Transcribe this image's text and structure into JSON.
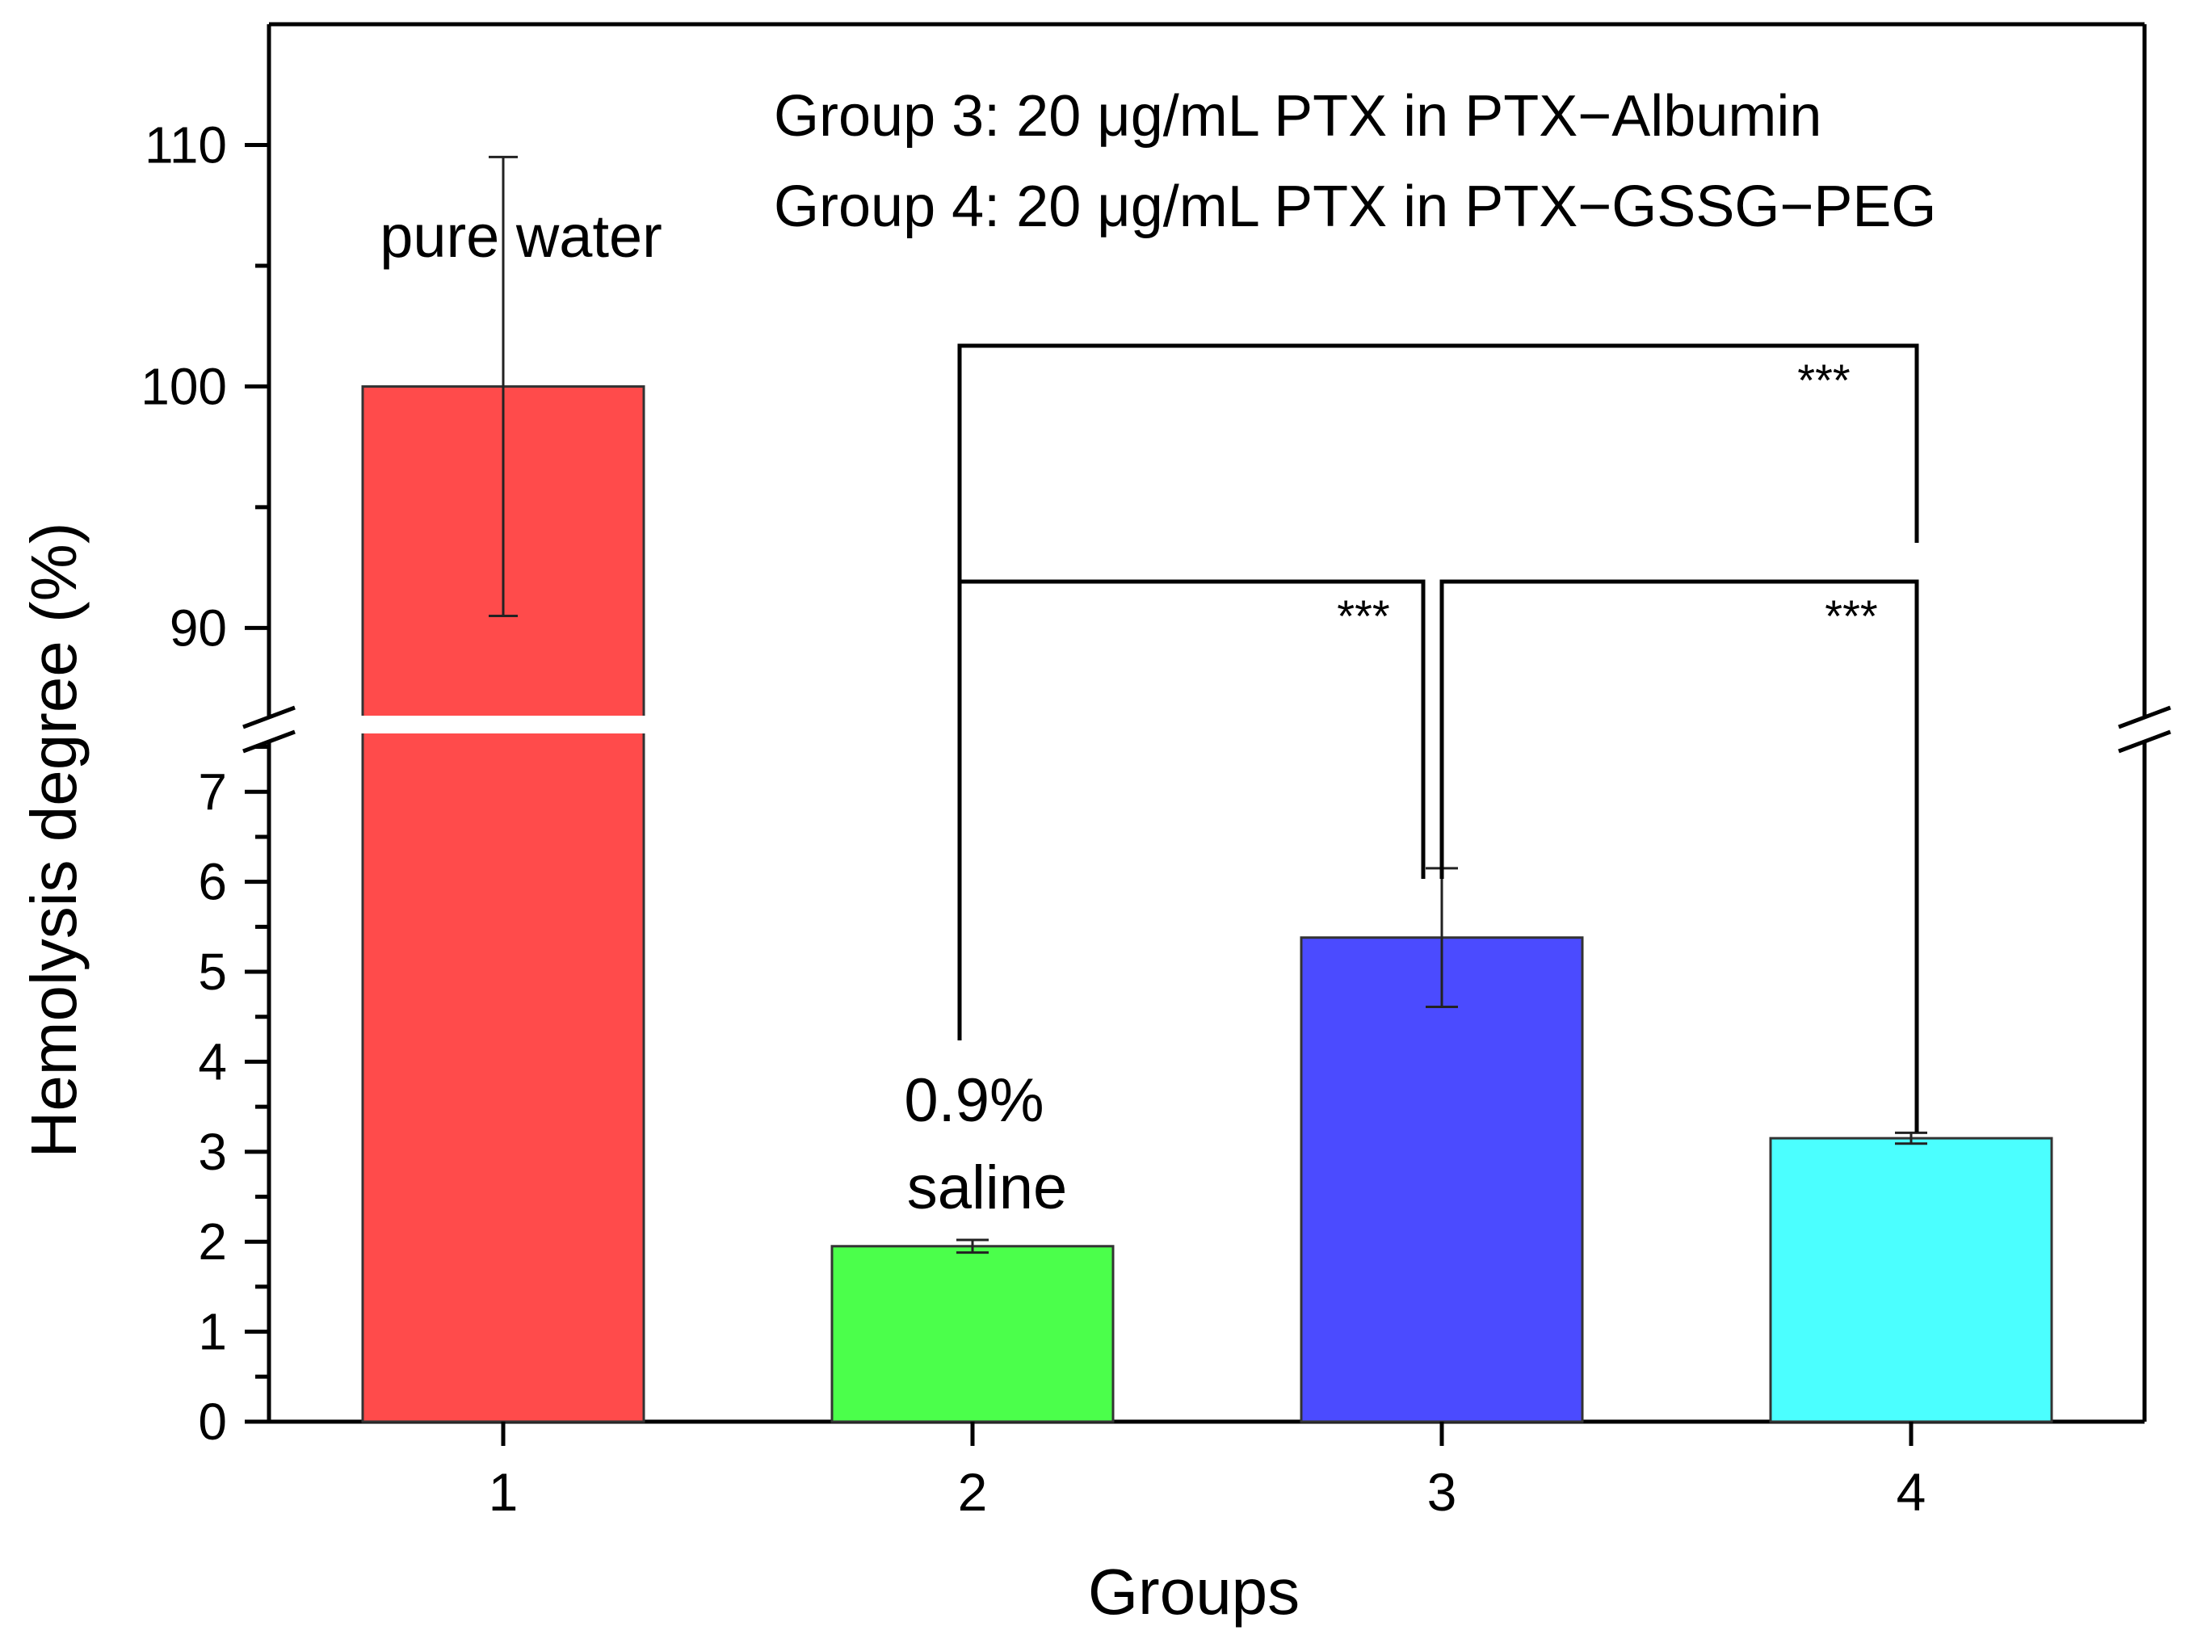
{
  "chart_data": {
    "type": "bar",
    "xlabel": "Groups",
    "ylabel": "Hemolysis degree (%)",
    "categories": [
      "1",
      "2",
      "3",
      "4"
    ],
    "values": [
      100,
      1.95,
      5.38,
      3.15
    ],
    "errors": [
      9.5,
      0.07,
      0.77,
      0.06
    ],
    "colors": [
      "#ff4b4b",
      "#4bff4b",
      "#4b4bff",
      "#4bffff"
    ],
    "y_axis_lower": {
      "range": [
        0,
        7.9
      ],
      "ticks": [
        0,
        1,
        2,
        3,
        4,
        5,
        6,
        7
      ],
      "minor_step": 0.5
    },
    "y_axis_upper": {
      "range": [
        86.3,
        115
      ],
      "ticks": [
        90,
        100,
        110
      ],
      "minor_step": 5
    },
    "axis_break": true,
    "annotations": {
      "bar_label_1": "pure water",
      "bar_label_2_line1": "0.9%",
      "bar_label_2_line2": "saline",
      "legend_line1": "Group 3: 20 μg/mL PTX in PTX−Albumin",
      "legend_line2": "Group 4: 20 μg/mL PTX in PTX−GSSG−PEG"
    },
    "significance": [
      {
        "from": 2,
        "to": 4,
        "label": "***"
      },
      {
        "from": 2,
        "to": 3,
        "label": "***"
      },
      {
        "from": 3,
        "to": 4,
        "label": "***"
      }
    ]
  }
}
